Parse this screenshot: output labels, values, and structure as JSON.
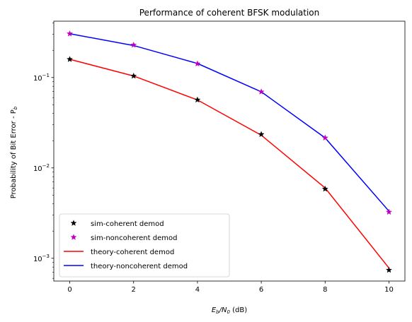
{
  "chart_data": {
    "type": "line",
    "title": "Performance of coherent BFSK modulation",
    "xlabel": "E_b/N_0 (dB)",
    "xlabel_parts": {
      "main": "E",
      "sub": "b",
      "slash": "/N",
      "sub2": "0",
      "tail": " (dB)"
    },
    "ylabel": "Probability of Bit Error - P_b",
    "ylabel_parts": {
      "main": "Probability of Bit Error - P",
      "sub": "b"
    },
    "xlim": [
      -0.5,
      10.5
    ],
    "ylim": [
      0.00056,
      0.42
    ],
    "yscale": "log",
    "grid": false,
    "legend_position": "lower-left",
    "x_ticks": [
      0,
      2,
      4,
      6,
      8,
      10
    ],
    "x_tick_labels": [
      "0",
      "2",
      "4",
      "6",
      "8",
      "10"
    ],
    "y_ticks": [
      0.001,
      0.01,
      0.1
    ],
    "y_tick_base": "10",
    "y_tick_exponents": [
      "−3",
      "−2",
      "−1"
    ],
    "series": [
      {
        "name": "sim-coherent demod",
        "style": "marker",
        "marker": "star",
        "color": "#000000",
        "x": [
          0,
          2,
          4,
          6,
          8,
          10
        ],
        "y": [
          0.159,
          0.104,
          0.0566,
          0.0235,
          0.00585,
          0.00074
        ]
      },
      {
        "name": "sim-noncoherent demod",
        "style": "marker",
        "marker": "star",
        "color": "#bf00bf",
        "x": [
          0,
          2,
          4,
          6,
          8,
          10
        ],
        "y": [
          0.305,
          0.229,
          0.142,
          0.0695,
          0.0215,
          0.00325
        ]
      },
      {
        "name": "theory-coherent demod",
        "style": "line",
        "color": "#ff0000",
        "x": [
          0,
          2,
          4,
          6,
          8,
          10
        ],
        "y": [
          0.159,
          0.104,
          0.0565,
          0.023,
          0.006,
          0.00078
        ]
      },
      {
        "name": "theory-noncoherent demod",
        "style": "line",
        "color": "#0000ff",
        "x": [
          0,
          2,
          4,
          6,
          8,
          10
        ],
        "y": [
          0.305,
          0.226,
          0.143,
          0.0695,
          0.0215,
          0.00332
        ]
      }
    ]
  }
}
